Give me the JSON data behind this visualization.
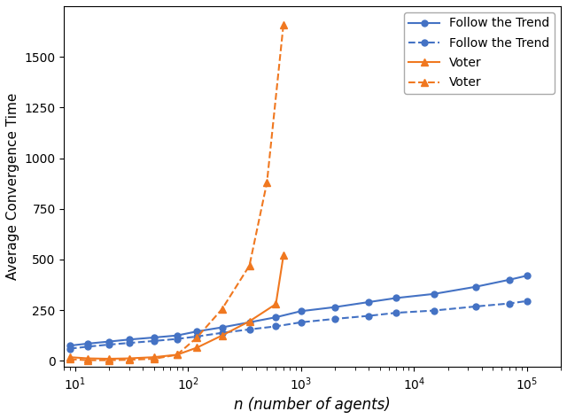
{
  "x_blue": [
    9,
    13,
    20,
    30,
    50,
    80,
    120,
    200,
    350,
    600,
    1000,
    2000,
    4000,
    7000,
    15000,
    35000,
    70000,
    100000
  ],
  "y_ftt_solid": [
    75,
    85,
    95,
    105,
    115,
    125,
    145,
    165,
    190,
    215,
    245,
    265,
    290,
    310,
    330,
    365,
    400,
    420
  ],
  "y_ftt_dashed": [
    60,
    70,
    80,
    88,
    98,
    108,
    120,
    138,
    155,
    170,
    190,
    207,
    222,
    237,
    248,
    268,
    283,
    295
  ],
  "x_voter_solid": [
    9,
    13,
    20,
    30,
    50,
    80,
    120,
    200,
    350,
    600,
    700
  ],
  "y_voter_solid": [
    18,
    12,
    10,
    12,
    18,
    30,
    65,
    125,
    195,
    280,
    520
  ],
  "x_voter_dashed": [
    9,
    13,
    20,
    30,
    50,
    80,
    120,
    200,
    350,
    500,
    700
  ],
  "y_voter_dashed": [
    8,
    3,
    3,
    5,
    10,
    30,
    115,
    255,
    470,
    880,
    1660
  ],
  "color_blue": "#4472c4",
  "color_orange": "#f07820",
  "ylabel": "Average Convergence Time",
  "xlabel": "n (number of agents)",
  "legend_labels": [
    "Follow the Trend",
    "Follow the Trend",
    "Voter",
    "Voter"
  ],
  "ylim": [
    -30,
    1750
  ],
  "yticks": [
    0,
    250,
    500,
    750,
    1000,
    1250,
    1500
  ],
  "xlim_left": 8,
  "xlim_right": 200000
}
